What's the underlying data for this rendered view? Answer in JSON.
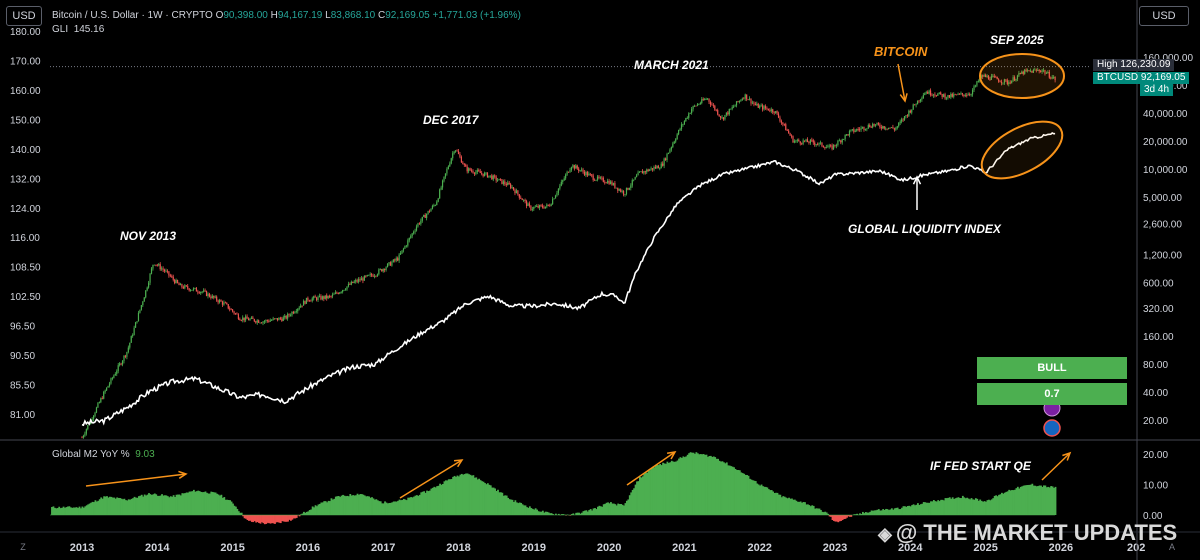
{
  "toolbar": {
    "currency_left": "USD",
    "currency_right": "USD",
    "bottom_left": "Z",
    "bottom_right": "A"
  },
  "header": {
    "symbol": "Bitcoin / U.S. Dollar · 1W · CRYPTO",
    "open_label": "O",
    "open": "90,398.00",
    "high_label": "H",
    "high": "94,167.19",
    "low_label": "L",
    "low": "83,868.10",
    "close_label": "C",
    "close": "92,169.05",
    "change": "+1,771.03 (+1.96%)"
  },
  "gli": {
    "label": "GLI",
    "value": "145.16"
  },
  "m2": {
    "label": "Global M2 YoY %",
    "value": "9.03"
  },
  "tags": {
    "high_label": "High",
    "high_value": "126,230.09",
    "price_label": "BTCUSD",
    "price_value": "92,169.05",
    "countdown": "3d 4h"
  },
  "signal": {
    "label": "BULL",
    "value": "0.7"
  },
  "annotations": {
    "nov2013": "NOV 2013",
    "dec2017": "DEC 2017",
    "mar2021": "MARCH 2021",
    "sep2025": "SEP 2025",
    "bitcoin": "BITCOIN",
    "gli_label": "GLOBAL LIQUIDITY INDEX",
    "fed_qe": "IF FED START QE"
  },
  "watermark": "@ THE MARKET UPDATES",
  "colors": {
    "up": "#26a69a",
    "up_candle": "#4caf50",
    "down_candle": "#ef5350",
    "gli_line": "#ffffff",
    "m2_positive": "#4caf50",
    "m2_negative": "#ef5350",
    "annotation_orange": "#f7931a",
    "price_tag": "#00897b",
    "high_tag": "#2a2e39"
  },
  "chart_data": [
    {
      "type": "line",
      "title": "",
      "xlabel": "",
      "ylabel": "",
      "x_ticks": [
        "2013",
        "2014",
        "2015",
        "2016",
        "2017",
        "2018",
        "2019",
        "2020",
        "2021",
        "2022",
        "2023",
        "2024",
        "2025",
        "2026",
        "202"
      ],
      "left_axis_ticks": [
        "180.00",
        "170.00",
        "160.00",
        "150.00",
        "140.00",
        "132.00",
        "124.00",
        "116.00",
        "108.50",
        "102.50",
        "96.50",
        "90.50",
        "85.50",
        "81.00"
      ],
      "right_axis_ticks": [
        "160,000.00",
        "80,000.00",
        "40,000.00",
        "20,000.00",
        "10,000.00",
        "5,000.00",
        "2,600.00",
        "1,200.00",
        "600.00",
        "320.00",
        "160.00",
        "80.00",
        "40.00",
        "20.00"
      ],
      "right_axis_scale": "log",
      "series": [
        {
          "name": "BTCUSD",
          "axis": "right",
          "style": "candles",
          "x": [
            2013.0,
            2013.3,
            2013.6,
            2013.85,
            2013.95,
            2014.1,
            2014.3,
            2014.6,
            2014.9,
            2015.1,
            2015.4,
            2015.7,
            2016.0,
            2016.3,
            2016.6,
            2016.9,
            2017.2,
            2017.45,
            2017.7,
            2017.85,
            2017.95,
            2018.1,
            2018.4,
            2018.7,
            2018.95,
            2019.2,
            2019.5,
            2019.8,
            2020.0,
            2020.2,
            2020.4,
            2020.7,
            2020.95,
            2021.1,
            2021.3,
            2021.5,
            2021.8,
            2021.95,
            2022.2,
            2022.45,
            2022.7,
            2022.95,
            2023.2,
            2023.5,
            2023.8,
            2024.0,
            2024.2,
            2024.5,
            2024.8,
            2024.95,
            2025.1,
            2025.3,
            2025.5,
            2025.75,
            2025.92
          ],
          "values": [
            13,
            40,
            110,
            500,
            1000,
            800,
            550,
            480,
            350,
            250,
            230,
            250,
            400,
            420,
            600,
            750,
            1100,
            2500,
            4300,
            10000,
            17000,
            10000,
            8500,
            6500,
            3800,
            4000,
            11000,
            8000,
            7300,
            5500,
            9000,
            11000,
            28000,
            45000,
            58000,
            35000,
            62000,
            48000,
            42000,
            20000,
            19500,
            16800,
            25000,
            30000,
            27000,
            43000,
            68000,
            60000,
            65000,
            100000,
            95000,
            85000,
            110000,
            116000,
            92169
          ]
        },
        {
          "name": "GLI",
          "axis": "left",
          "style": "line",
          "x": [
            2013.0,
            2013.3,
            2013.6,
            2013.9,
            2014.2,
            2014.5,
            2014.8,
            2015.1,
            2015.4,
            2015.7,
            2016.0,
            2016.3,
            2016.6,
            2016.9,
            2017.2,
            2017.5,
            2017.8,
            2018.1,
            2018.4,
            2018.7,
            2019.0,
            2019.3,
            2019.6,
            2019.9,
            2020.1,
            2020.2,
            2020.35,
            2020.6,
            2020.9,
            2021.2,
            2021.5,
            2021.8,
            2022.0,
            2022.2,
            2022.5,
            2022.8,
            2023.0,
            2023.3,
            2023.6,
            2023.9,
            2024.2,
            2024.5,
            2024.8,
            2025.0,
            2025.3,
            2025.6,
            2025.9
          ],
          "values": [
            79.5,
            80.0,
            82.0,
            84.5,
            86.0,
            86.5,
            85.0,
            83.5,
            84.0,
            83.0,
            85.0,
            87.0,
            88.5,
            89.0,
            92.0,
            95.0,
            97.5,
            101.0,
            102.5,
            100.5,
            100.5,
            101.0,
            100.0,
            103.0,
            102.5,
            101.0,
            107.0,
            116.0,
            125.0,
            130.0,
            133.0,
            134.5,
            135.5,
            136.5,
            134.0,
            130.5,
            133.0,
            133.5,
            134.0,
            131.5,
            133.0,
            134.0,
            135.5,
            133.5,
            140.0,
            143.5,
            145.16
          ]
        }
      ]
    },
    {
      "type": "area",
      "title": "",
      "xlabel": "",
      "ylabel": "",
      "y_axis_ticks": [
        "20.00",
        "10.00",
        "0.00"
      ],
      "ylim": [
        -5,
        22
      ],
      "series": [
        {
          "name": "Global M2 YoY %",
          "x": [
            2013.0,
            2013.3,
            2013.6,
            2013.9,
            2014.2,
            2014.5,
            2014.8,
            2015.0,
            2015.2,
            2015.5,
            2015.8,
            2016.1,
            2016.4,
            2016.7,
            2017.0,
            2017.3,
            2017.6,
            2017.9,
            2018.1,
            2018.4,
            2018.7,
            2019.0,
            2019.2,
            2019.5,
            2019.8,
            2020.0,
            2020.2,
            2020.4,
            2020.6,
            2020.9,
            2021.1,
            2021.4,
            2021.7,
            2022.0,
            2022.3,
            2022.6,
            2022.9,
            2023.0,
            2023.2,
            2023.5,
            2023.8,
            2024.1,
            2024.4,
            2024.7,
            2025.0,
            2025.3,
            2025.6,
            2025.9
          ],
          "values": [
            2.5,
            6.0,
            5.0,
            7.0,
            6.0,
            8.0,
            7.0,
            4.0,
            -2.0,
            -3.0,
            -1.5,
            3.0,
            6.0,
            7.0,
            4.0,
            5.0,
            8.0,
            12.0,
            14.0,
            10.0,
            5.0,
            2.0,
            0.5,
            0.0,
            2.0,
            4.0,
            3.0,
            12.0,
            16.0,
            18.0,
            20.5,
            19.0,
            15.0,
            10.0,
            6.0,
            4.0,
            0.5,
            -2.5,
            -0.5,
            1.5,
            2.0,
            3.5,
            5.0,
            6.0,
            4.5,
            8.0,
            10.0,
            9.03
          ]
        }
      ]
    }
  ]
}
